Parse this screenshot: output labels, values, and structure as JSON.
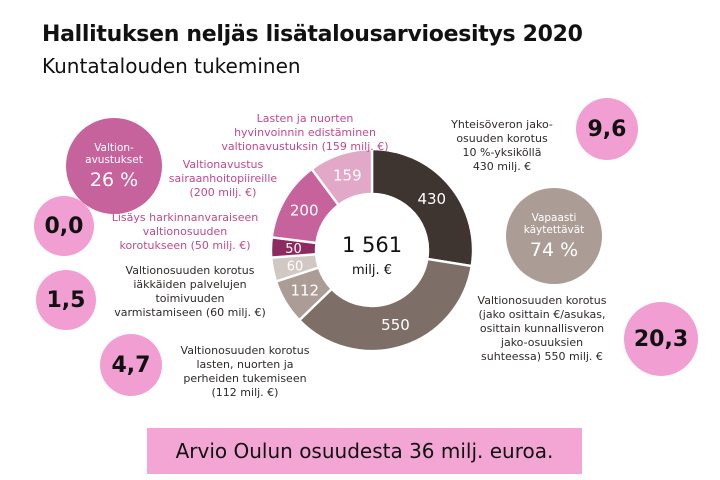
{
  "title": "Hallituksen neljäs lisätalousarvioesitys 2020",
  "subtitle": "Kuntatalouden tukeminen",
  "chart_data": {
    "type": "pie",
    "donut": true,
    "center_value": "1 561",
    "center_unit": "milj. €",
    "slices": [
      {
        "value": 430,
        "label": "430",
        "color": "#3e3430",
        "desc": [
          "Yhteisöveron jako-",
          "osuuden korotus",
          "10 %-yksiköllä",
          "430 milj. €"
        ]
      },
      {
        "value": 550,
        "label": "550",
        "color": "#7d6f68",
        "desc": [
          "Valtionosuuden korotus",
          "(jako osittain €/asukas,",
          "osittain kunnallisveron",
          "jako-osuuksien",
          "suhteessa) 550 milj. €"
        ]
      },
      {
        "value": 112,
        "label": "112",
        "color": "#ab9d96",
        "desc": [
          "Valtionosuuden korotus",
          "lasten, nuorten ja",
          "perheiden tukemiseen",
          "(112 milj. €)"
        ]
      },
      {
        "value": 60,
        "label": "60",
        "color": "#d2c8c3",
        "desc": [
          "Valtionosuuden korotus",
          "iäkkäiden palvelujen",
          "toimivuuden",
          "varmistamiseen (60 milj. €)"
        ]
      },
      {
        "value": 50,
        "label": "50",
        "color": "#8d2a62",
        "desc": [
          "Lisäys harkinnanvaraiseen",
          "valtionosuuden",
          "korotukseen (50 milj. €)"
        ]
      },
      {
        "value": 200,
        "label": "200",
        "color": "#c7639c",
        "desc": [
          "Valtionavustus",
          "sairaanhoitopiireille",
          "(200 milj. €)"
        ]
      },
      {
        "value": 159,
        "label": "159",
        "color": "#e2a8c8",
        "desc": [
          "Lasten ja nuorten",
          "hyvinvoinnin edistäminen",
          "valtionavustuksin (159 milj. €)"
        ]
      }
    ]
  },
  "stat_circles": {
    "valtionavustukset": {
      "label": [
        "Valtion-",
        "avustukset"
      ],
      "value": "26 %",
      "color": "#c7639c"
    },
    "vapaasti": {
      "label": [
        "Vapaasti",
        "käytettävät"
      ],
      "value": "74 %",
      "color": "#ab9d96"
    }
  },
  "oulu_bubbles": [
    {
      "value": "9,6"
    },
    {
      "value": "0,0"
    },
    {
      "value": "1,5"
    },
    {
      "value": "20,3"
    },
    {
      "value": "4,7"
    }
  ],
  "footer": "Arvio Oulun osuudesta 36 milj. euroa.",
  "colors": {
    "bubble": "#f19fd2",
    "footer_bg": "#f3a6d3",
    "pink_text": "#c04a8b"
  }
}
